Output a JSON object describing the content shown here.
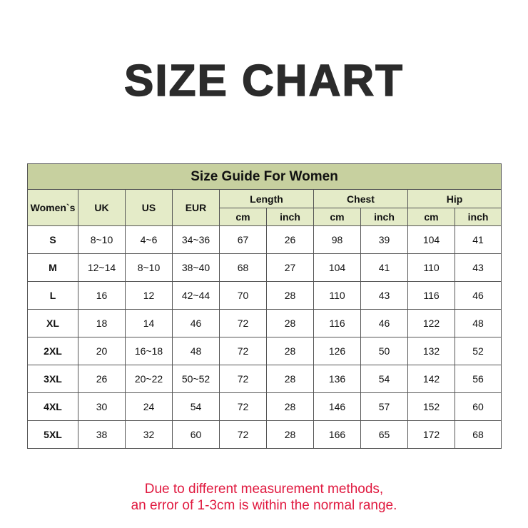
{
  "title": "SIZE CHART",
  "table": {
    "caption": "Size Guide For Women",
    "headers": {
      "size": "Women`s",
      "uk": "UK",
      "us": "US",
      "eur": "EUR",
      "length": "Length",
      "chest": "Chest",
      "hip": "Hip",
      "cm": "cm",
      "inch": "inch"
    },
    "rows": [
      [
        "S",
        "8~10",
        "4~6",
        "34~36",
        "67",
        "26",
        "98",
        "39",
        "104",
        "41"
      ],
      [
        "M",
        "12~14",
        "8~10",
        "38~40",
        "68",
        "27",
        "104",
        "41",
        "110",
        "43"
      ],
      [
        "L",
        "16",
        "12",
        "42~44",
        "70",
        "28",
        "110",
        "43",
        "116",
        "46"
      ],
      [
        "XL",
        "18",
        "14",
        "46",
        "72",
        "28",
        "116",
        "46",
        "122",
        "48"
      ],
      [
        "2XL",
        "20",
        "16~18",
        "48",
        "72",
        "28",
        "126",
        "50",
        "132",
        "52"
      ],
      [
        "3XL",
        "26",
        "20~22",
        "50~52",
        "72",
        "28",
        "136",
        "54",
        "142",
        "56"
      ],
      [
        "4XL",
        "30",
        "24",
        "54",
        "72",
        "28",
        "146",
        "57",
        "152",
        "60"
      ],
      [
        "5XL",
        "38",
        "32",
        "60",
        "72",
        "28",
        "166",
        "65",
        "172",
        "68"
      ]
    ]
  },
  "note": {
    "line1": "Due to different measurement methods,",
    "line2": "an error of 1-3cm is within the normal range."
  },
  "colors": {
    "title_row": "#c7d09f",
    "header": "#e4ebc8",
    "note": "#e0193f"
  }
}
